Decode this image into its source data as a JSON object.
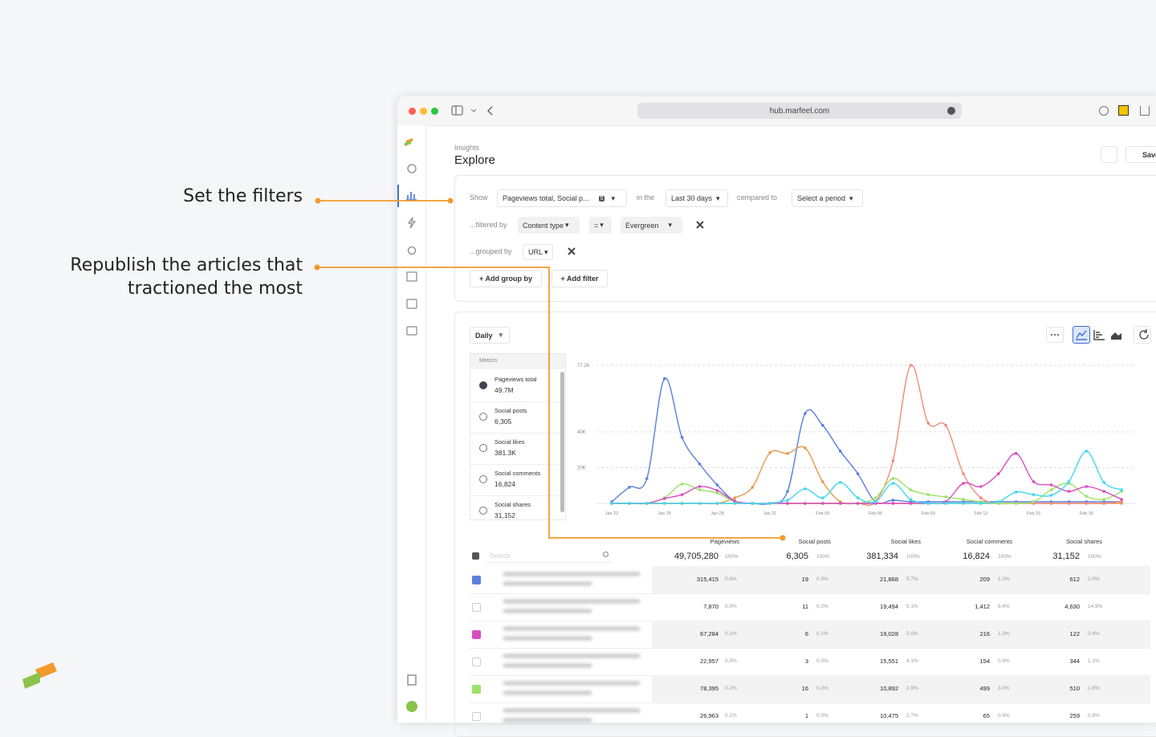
{
  "annotations": {
    "filters": "Set the filters",
    "republish": [
      "Republish the articles that",
      "tractioned the most"
    ]
  },
  "browser": {
    "url": "hub.marfeel.com"
  },
  "header": {
    "breadcrumb": "Insights",
    "title": "Explore",
    "save": "Save"
  },
  "query": {
    "show_label": "Show",
    "metrics": "Pageviews total, Social p...",
    "metric_count": 5,
    "in_label": "in the",
    "period": "Last 30 days",
    "compare_label": "compared to",
    "compare": "Select a period",
    "filter_label": "...filtered by",
    "filter_field": "Content type",
    "filter_op": "=",
    "filter_value": "Evergreen",
    "group_label": "...grouped by",
    "group_field": "URL",
    "add_group": "+ Add group by",
    "add_filter": "+ Add filter"
  },
  "chart_panel": {
    "granularity": "Daily",
    "metrics_title": "Metrics",
    "metrics": [
      {
        "name": "Pageviews total",
        "value": "49.7M"
      },
      {
        "name": "Social posts",
        "value": "6,305"
      },
      {
        "name": "Social likes",
        "value": "381.3K"
      },
      {
        "name": "Social comments",
        "value": "16,824"
      },
      {
        "name": "Social shares",
        "value": "31,152"
      }
    ]
  },
  "chart_data": {
    "type": "line",
    "categories": [
      "Jan 22",
      null,
      null,
      "Jan 25",
      null,
      null,
      "Jan 28",
      null,
      null,
      "Jan 31",
      null,
      null,
      "Feb 03",
      null,
      null,
      "Feb 06",
      null,
      null,
      "Feb 09",
      null,
      null,
      "Feb 12",
      null,
      null,
      "Feb 15",
      null,
      null,
      "Feb 18",
      null,
      null
    ],
    "ylim": [
      0,
      77200
    ],
    "yticks": [
      {
        "value": 20000,
        "label": "20K"
      },
      {
        "value": 40000,
        "label": "40K"
      },
      {
        "value": 77200,
        "label": "77.2K"
      }
    ],
    "grid": true,
    "series": [
      {
        "color": "#5b7fe0",
        "values": [
          900,
          9000,
          13900,
          69700,
          36900,
          22000,
          10300,
          1300,
          0,
          0,
          6700,
          50300,
          43600,
          29200,
          16600,
          900,
          1800,
          900,
          900,
          900,
          900,
          900,
          900,
          900,
          900,
          900,
          900,
          900,
          900,
          900
        ]
      },
      {
        "color": "#e59a4a",
        "values": [
          0,
          0,
          0,
          0,
          0,
          0,
          0,
          3100,
          9000,
          28300,
          27900,
          31000,
          12100,
          900,
          0,
          0,
          0,
          0,
          0,
          0,
          0,
          0,
          0,
          0,
          0,
          0,
          0,
          0,
          0,
          0
        ]
      },
      {
        "color": "#f28b79",
        "values": [
          0,
          0,
          0,
          0,
          0,
          0,
          0,
          0,
          0,
          0,
          0,
          0,
          0,
          0,
          0,
          900,
          23800,
          77200,
          44900,
          43600,
          16600,
          3100,
          0,
          0,
          0,
          0,
          0,
          0,
          0,
          900
        ]
      },
      {
        "color": "#9be36a",
        "values": [
          0,
          0,
          0,
          3100,
          10800,
          7600,
          5800,
          900,
          0,
          0,
          0,
          0,
          0,
          0,
          0,
          3100,
          13900,
          7600,
          4900,
          3600,
          2200,
          900,
          0,
          0,
          900,
          7600,
          11200,
          4000,
          2200,
          6700
        ]
      },
      {
        "color": "#d94cc0",
        "values": [
          0,
          0,
          0,
          2700,
          4900,
          9400,
          7200,
          1300,
          0,
          0,
          0,
          0,
          0,
          0,
          0,
          0,
          0,
          0,
          0,
          900,
          11200,
          9400,
          16600,
          27900,
          12100,
          10300,
          6700,
          9400,
          6700,
          2200
        ]
      },
      {
        "color": "#3fd8f0",
        "values": [
          0,
          0,
          0,
          0,
          0,
          0,
          0,
          0,
          0,
          0,
          1800,
          8100,
          3100,
          11700,
          3100,
          900,
          11200,
          2200,
          0,
          0,
          0,
          0,
          900,
          6300,
          4900,
          4500,
          12100,
          29200,
          11700,
          7600
        ]
      }
    ]
  },
  "table": {
    "search": "Search",
    "columns": [
      "Pageviews",
      "Social posts",
      "Social likes",
      "Social comments",
      "Social shares"
    ],
    "totals": [
      [
        "49,705,280",
        "100%"
      ],
      [
        "6,305",
        "100%"
      ],
      [
        "381,334",
        "100%"
      ],
      [
        "16,824",
        "100%"
      ],
      [
        "31,152",
        "100%"
      ]
    ],
    "rows": [
      {
        "check_color": "#5b7fe0",
        "cells": [
          [
            "315,415",
            "0.6%"
          ],
          [
            "19",
            "0.3%"
          ],
          [
            "21,868",
            "5.7%"
          ],
          [
            "209",
            "1.2%"
          ],
          [
            "612",
            "2.0%"
          ]
        ]
      },
      {
        "cells": [
          [
            "7,870",
            "0.0%"
          ],
          [
            "11",
            "0.2%"
          ],
          [
            "19,494",
            "5.1%"
          ],
          [
            "1,412",
            "8.4%"
          ],
          [
            "4,630",
            "14.9%"
          ]
        ]
      },
      {
        "check_color": "#d94cc0",
        "cells": [
          [
            "67,284",
            "0.1%"
          ],
          [
            "6",
            "0.1%"
          ],
          [
            "19,028",
            "5.0%"
          ],
          [
            "216",
            "1.3%"
          ],
          [
            "122",
            "0.4%"
          ]
        ]
      },
      {
        "cells": [
          [
            "22,957",
            "0.0%"
          ],
          [
            "3",
            "0.0%"
          ],
          [
            "15,551",
            "4.1%"
          ],
          [
            "154",
            "0.9%"
          ],
          [
            "344",
            "1.1%"
          ]
        ]
      },
      {
        "check_color": "#9be36a",
        "cells": [
          [
            "78,395",
            "0.2%"
          ],
          [
            "16",
            "0.3%"
          ],
          [
            "10,892",
            "2.9%"
          ],
          [
            "499",
            "3.0%"
          ],
          [
            "510",
            "1.6%"
          ]
        ]
      },
      {
        "cells": [
          [
            "26,963",
            "0.1%"
          ],
          [
            "1",
            "0.0%"
          ],
          [
            "10,475",
            "2.7%"
          ],
          [
            "65",
            "0.4%"
          ],
          [
            "259",
            "0.8%"
          ]
        ]
      }
    ]
  }
}
